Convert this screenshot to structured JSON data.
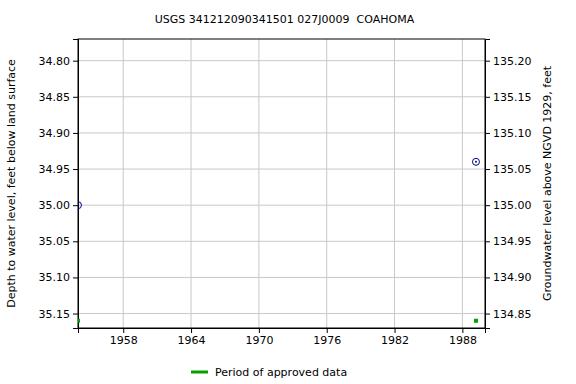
{
  "chart_data": {
    "type": "scatter",
    "title": "USGS 341212090341501 027J0009  COAHOMA",
    "x_label": "",
    "y_label": "Depth to water level, feet below land surface",
    "y2_label": "Groundwater level above NGVD 1929, feet",
    "x": [
      1954.0,
      1989.2
    ],
    "series": [
      {
        "color": "#00008b",
        "marker": "open-circle",
        "values": [
          35.0,
          34.94
        ]
      },
      {
        "name": "Period of approved data",
        "color": "#00a000",
        "marker": "square",
        "values": [
          35.16,
          35.16
        ]
      }
    ],
    "xlim": [
      1954.0,
      1990.0
    ],
    "xticks": [
      1958,
      1964,
      1970,
      1976,
      1982,
      1988
    ],
    "ylim": [
      35.17,
      34.77
    ],
    "yticks": [
      {
        "value": 34.8,
        "label": "34.80"
      },
      34.85,
      {
        "value": 34.9,
        "label": "34.90"
      },
      34.95,
      {
        "value": 35.0,
        "label": "35.00"
      },
      35.05,
      {
        "value": 35.1,
        "label": "35.10"
      },
      35.15
    ],
    "y2lim": [
      134.83,
      135.23
    ],
    "y2ticks": [
      {
        "value": 135.2,
        "label": "135.20"
      },
      135.15,
      {
        "value": 135.1,
        "label": "135.10"
      },
      135.05,
      {
        "value": 135.0,
        "label": "135.00"
      },
      134.95,
      {
        "value": 134.9,
        "label": "134.90"
      },
      134.85
    ],
    "grid": true,
    "legend": "bottom"
  }
}
